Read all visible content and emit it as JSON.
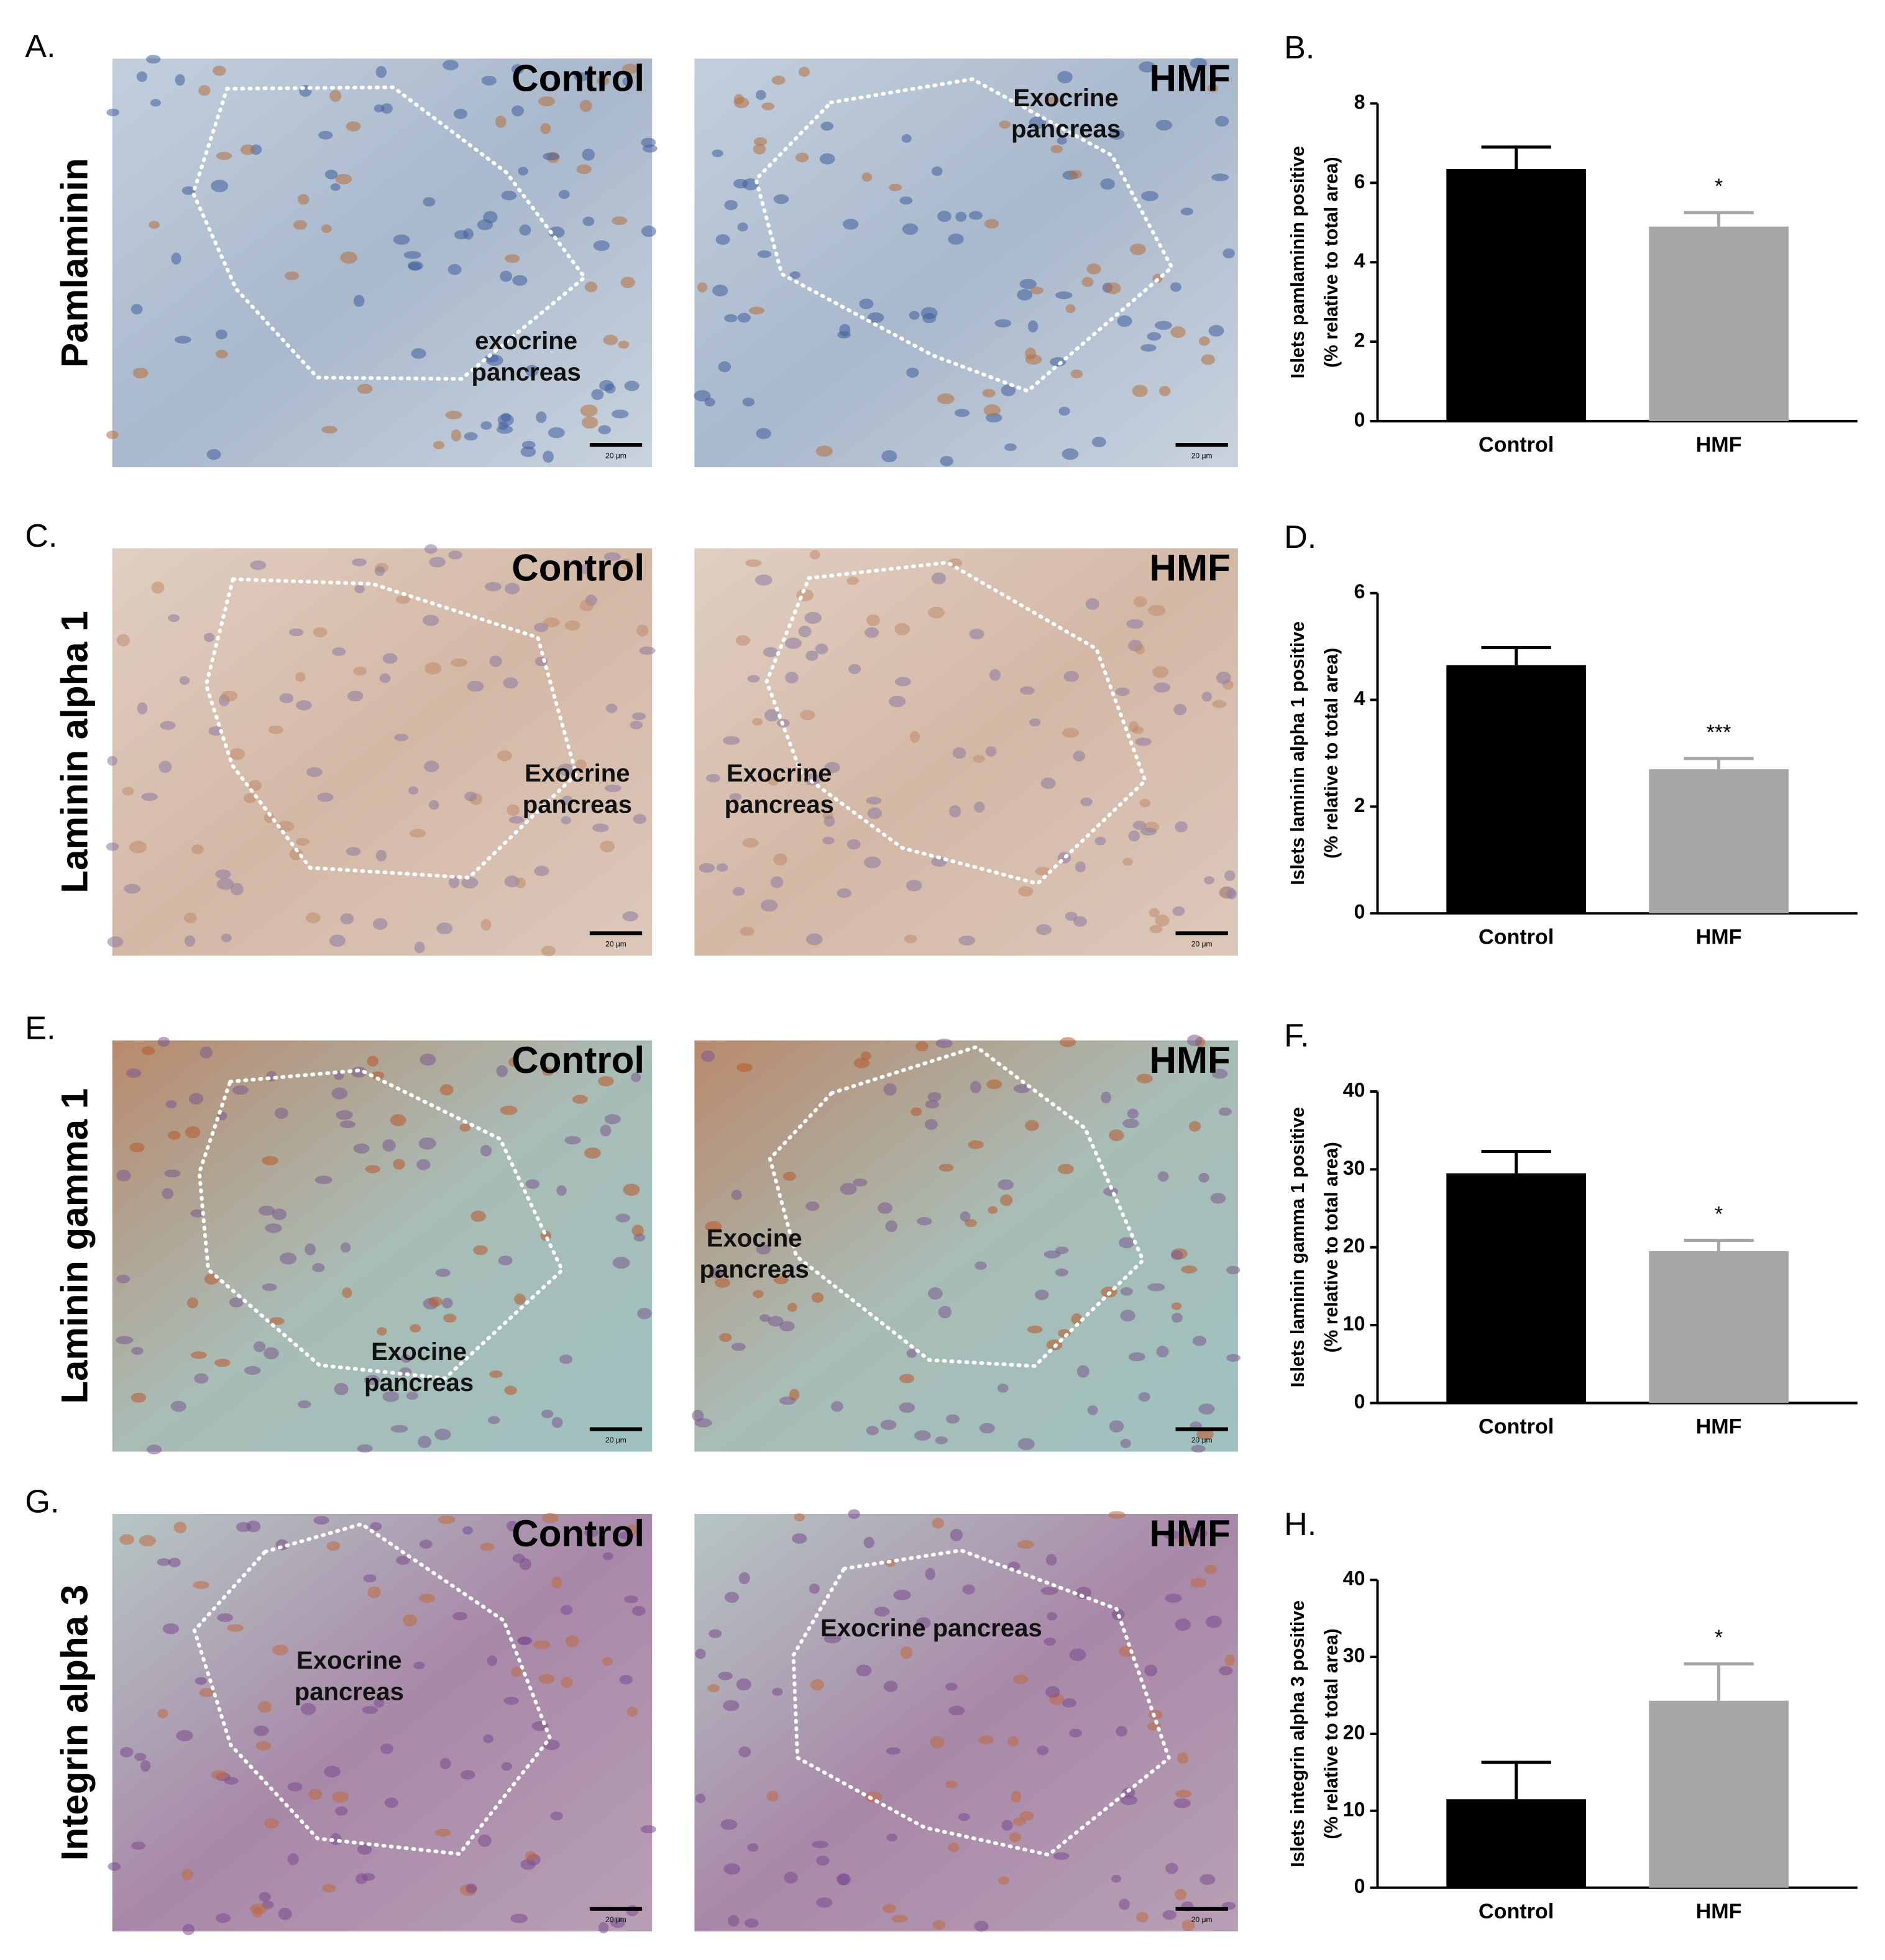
{
  "figure": {
    "rows": [
      {
        "panel": "A.",
        "label": "Pamlaminin",
        "images": [
          {
            "title": "Control",
            "note": [
              "exocrine",
              "pancreas"
            ],
            "scale": "20 μm"
          },
          {
            "title": "HMF",
            "note": [
              "Exocrine",
              "pancreas"
            ],
            "scale": "20 μm"
          }
        ]
      },
      {
        "panel": "C.",
        "label": "Laminin alpha 1",
        "images": [
          {
            "title": "Control",
            "note": [
              "Exocrine",
              "pancreas"
            ],
            "scale": "20 μm"
          },
          {
            "title": "HMF",
            "note": [
              "Exocrine",
              "pancreas"
            ],
            "scale": "20 μm"
          }
        ]
      },
      {
        "panel": "E.",
        "label": "Laminin gamma 1",
        "images": [
          {
            "title": "Control",
            "note": [
              "Exocine",
              "pancreas"
            ],
            "scale": "20 μm"
          },
          {
            "title": "HMF",
            "note": [
              "Exocine",
              "pancreas"
            ],
            "scale": "20 μm"
          }
        ]
      },
      {
        "panel": "G.",
        "label": "Integrin alpha 3",
        "images": [
          {
            "title": "Control",
            "note": [
              "Exocrine",
              "pancreas"
            ],
            "scale": "20 μm"
          },
          {
            "title": "HMF",
            "note": [
              "Exocrine pancreas"
            ],
            "scale": "20 μm"
          }
        ]
      }
    ]
  },
  "chart_data": [
    {
      "type": "bar",
      "panel": "B.",
      "ylabel": [
        "Islets pamlaminin positive",
        "(% relative to total area)"
      ],
      "categories": [
        "Control",
        "HMF"
      ],
      "values": [
        6.35,
        4.9
      ],
      "errors": [
        0.55,
        0.35
      ],
      "sig_labels": [
        null,
        "*"
      ],
      "colors": [
        "#000000",
        "#a6a6a8"
      ],
      "ylim": [
        0,
        8
      ],
      "yticks": [
        0,
        2,
        4,
        6,
        8
      ]
    },
    {
      "type": "bar",
      "panel": "D.",
      "ylabel": [
        "Islets laminin alpha 1 positive",
        "(% relative to total area)"
      ],
      "categories": [
        "Control",
        "HMF"
      ],
      "values": [
        4.65,
        2.7
      ],
      "errors": [
        0.33,
        0.2
      ],
      "sig_labels": [
        null,
        "***"
      ],
      "colors": [
        "#000000",
        "#a6a6a8"
      ],
      "ylim": [
        0,
        6
      ],
      "yticks": [
        0,
        2,
        4,
        6
      ]
    },
    {
      "type": "bar",
      "panel": "F.",
      "ylabel": [
        "Islets laminin gamma 1 positive",
        "(% relative to total area)"
      ],
      "categories": [
        "Control",
        "HMF"
      ],
      "values": [
        29.5,
        19.5
      ],
      "errors": [
        2.8,
        1.4
      ],
      "sig_labels": [
        null,
        "*"
      ],
      "colors": [
        "#000000",
        "#a6a6a8"
      ],
      "ylim": [
        0,
        40
      ],
      "yticks": [
        0,
        10,
        20,
        30,
        40
      ]
    },
    {
      "type": "bar",
      "panel": "H.",
      "ylabel": [
        "Islets integrin alpha 3 positive",
        "(% relative to total area)"
      ],
      "categories": [
        "Control",
        "HMF"
      ],
      "values": [
        11.5,
        24.3
      ],
      "errors": [
        4.8,
        4.8
      ],
      "sig_labels": [
        null,
        "*"
      ],
      "colors": [
        "#000000",
        "#a6a6a8"
      ],
      "ylim": [
        0,
        40
      ],
      "yticks": [
        0,
        10,
        20,
        30,
        40
      ]
    }
  ]
}
